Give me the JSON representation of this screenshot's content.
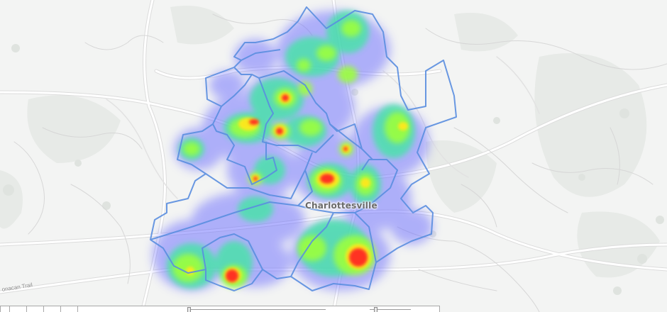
{
  "map": {
    "place_label": "Charlottesville",
    "road_label": "onacan Trail",
    "basemap_colors": {
      "land": "#f3f4f3",
      "park": "#e6e9e6",
      "road": "#ffffff",
      "road_casing": "#dcdcdc"
    },
    "boundary_color": "#5a8ee0",
    "heat_gradient": [
      "#6a6cff",
      "#3ee8a0",
      "#9cff3c",
      "#ffe81e",
      "#ff3020"
    ],
    "layers": [
      "basemap",
      "district-boundaries",
      "heatmap"
    ]
  },
  "toolbar": {
    "buttons": [
      "zoom-button",
      "layer-button",
      "filter-button",
      "draw-button",
      "measure-button"
    ],
    "sliders": [
      "radius-slider",
      "opacity-slider"
    ]
  }
}
